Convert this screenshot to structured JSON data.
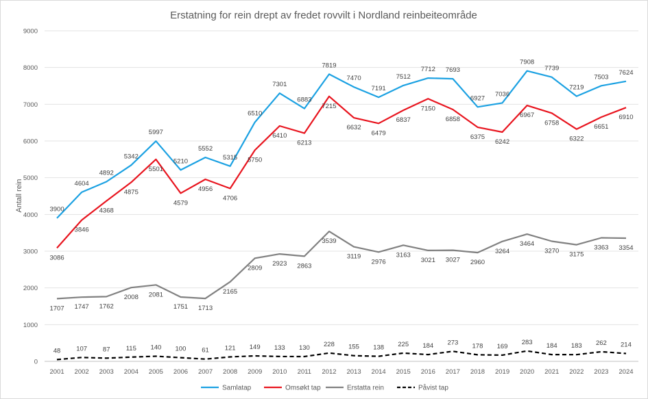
{
  "chart_data": {
    "type": "line",
    "title": "Erstatning for rein drept av fredet rovvilt i Nordland reinbeiteområde",
    "xlabel": "",
    "ylabel": "Antall rein",
    "ylim": [
      0,
      9000
    ],
    "yticks": [
      0,
      1000,
      2000,
      3000,
      4000,
      5000,
      6000,
      7000,
      8000,
      9000
    ],
    "grid": true,
    "legend": "bottom",
    "categories": [
      "2001",
      "2002",
      "2003",
      "2004",
      "2005",
      "2006",
      "2007",
      "2008",
      "2009",
      "2010",
      "2011",
      "2012",
      "2013",
      "2014",
      "2015",
      "2016",
      "2017",
      "2018",
      "2019",
      "2020",
      "2021",
      "2022",
      "2023",
      "2024"
    ],
    "series": [
      {
        "name": "Samlatap",
        "color": "#1ba1e2",
        "dash": "solid",
        "label_pos": "above",
        "values": [
          3900,
          4604,
          4892,
          5342,
          5997,
          5210,
          5552,
          5315,
          6510,
          7301,
          6883,
          7819,
          7470,
          7191,
          7512,
          7712,
          7693,
          6927,
          7036,
          7908,
          7739,
          7219,
          7503,
          7624
        ]
      },
      {
        "name": "Omsøkt tap",
        "color": "#e8141e",
        "dash": "solid",
        "label_pos": "below",
        "values": [
          3086,
          3846,
          4368,
          4875,
          5501,
          4579,
          4956,
          4706,
          5750,
          6410,
          6213,
          7215,
          6632,
          6479,
          6837,
          7150,
          6858,
          6375,
          6242,
          6967,
          6758,
          6322,
          6651,
          6910
        ]
      },
      {
        "name": "Erstatta rein",
        "color": "#808080",
        "dash": "solid",
        "label_pos": "below",
        "values": [
          1707,
          1747,
          1762,
          2008,
          2081,
          1751,
          1713,
          2165,
          2809,
          2923,
          2863,
          3539,
          3119,
          2976,
          3163,
          3021,
          3027,
          2960,
          3264,
          3464,
          3270,
          3175,
          3363,
          3354
        ]
      },
      {
        "name": "Påvist tap",
        "color": "#000000",
        "dash": "dashed",
        "label_pos": "above",
        "values": [
          48,
          107,
          87,
          115,
          140,
          100,
          61,
          121,
          149,
          133,
          130,
          228,
          155,
          138,
          225,
          184,
          273,
          178,
          169,
          283,
          184,
          183,
          262,
          214
        ]
      }
    ]
  }
}
